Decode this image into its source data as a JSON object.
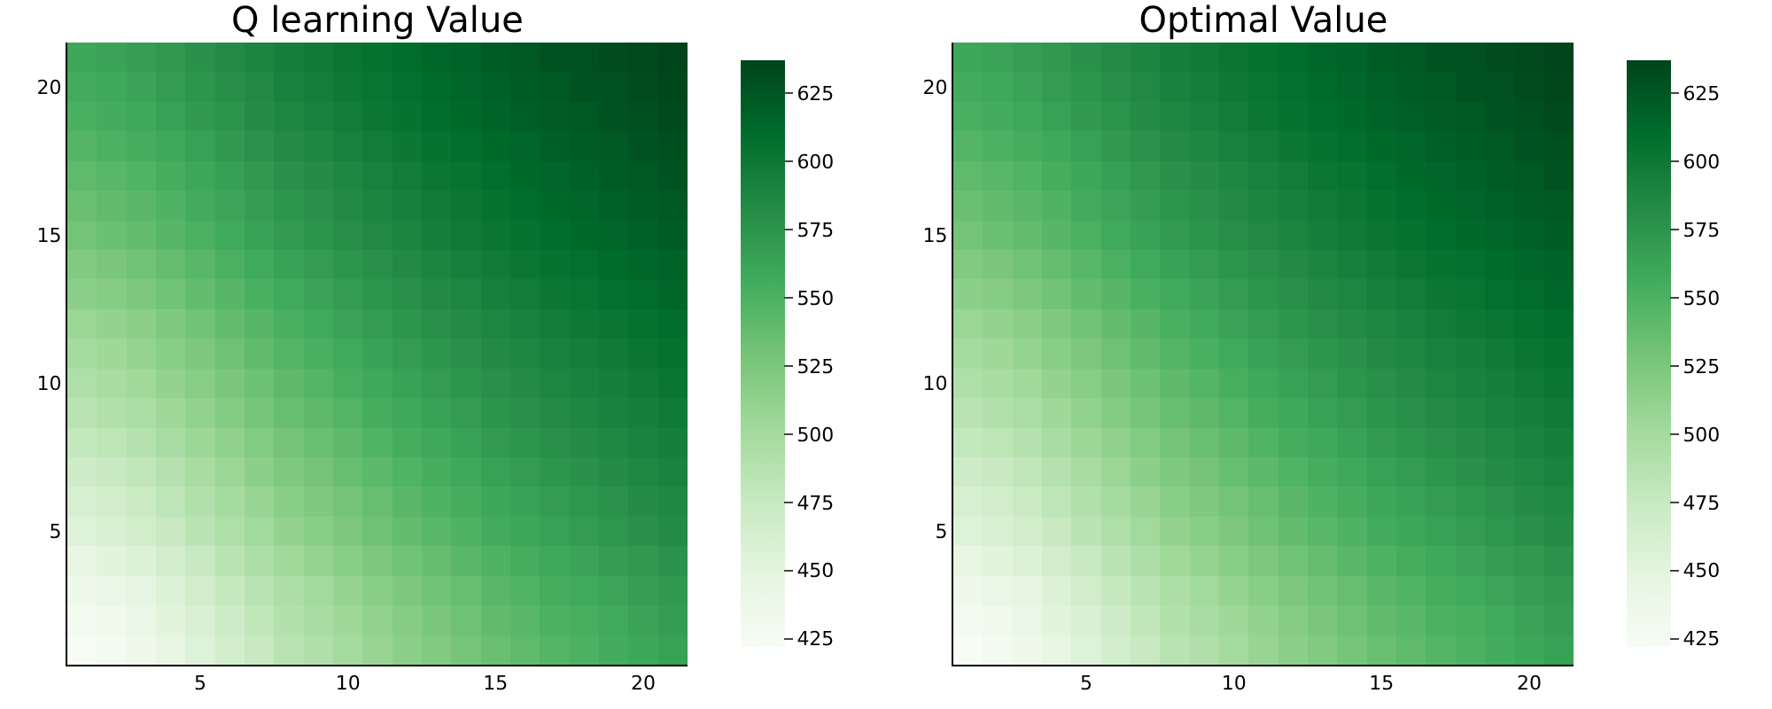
{
  "chart_data": [
    {
      "type": "heatmap",
      "title": "Q learning Value",
      "categories": [
        null,
        null,
        null,
        null,
        "5",
        null,
        null,
        null,
        null,
        "10",
        null,
        null,
        null,
        null,
        "15",
        null,
        null,
        null,
        null,
        "20",
        null
      ],
      "y_categories": [
        null,
        "20",
        null,
        null,
        null,
        null,
        "15",
        null,
        null,
        null,
        null,
        "10",
        null,
        null,
        null,
        null,
        "5",
        null,
        null,
        null,
        null
      ],
      "clim": [
        422,
        637
      ],
      "cticks": [
        425,
        450,
        475,
        500,
        525,
        550,
        575,
        600,
        625
      ],
      "cells": [
        [
          560,
          563,
          567,
          572,
          578,
          583,
          589,
          594,
          598,
          602,
          606,
          610,
          614,
          617,
          621,
          624,
          627,
          629,
          632,
          634,
          637
        ],
        [
          556,
          559,
          563,
          569,
          574,
          580,
          585,
          591,
          595,
          599,
          603,
          607,
          611,
          615,
          618,
          621,
          624,
          627,
          629,
          632,
          635
        ],
        [
          552,
          555,
          559,
          565,
          571,
          576,
          582,
          588,
          592,
          596,
          601,
          605,
          609,
          612,
          616,
          619,
          622,
          624,
          627,
          630,
          633
        ],
        [
          546,
          550,
          554,
          559,
          565,
          571,
          577,
          583,
          587,
          592,
          596,
          600,
          605,
          608,
          612,
          615,
          619,
          621,
          624,
          627,
          630
        ],
        [
          540,
          544,
          548,
          554,
          560,
          566,
          572,
          578,
          582,
          587,
          592,
          596,
          601,
          604,
          608,
          612,
          615,
          618,
          621,
          624,
          627
        ],
        [
          535,
          539,
          543,
          549,
          556,
          562,
          568,
          574,
          579,
          584,
          589,
          593,
          597,
          601,
          605,
          609,
          612,
          615,
          618,
          621,
          624
        ],
        [
          530,
          534,
          538,
          545,
          551,
          557,
          564,
          570,
          575,
          580,
          585,
          589,
          594,
          598,
          602,
          605,
          609,
          612,
          615,
          618,
          621
        ],
        [
          522,
          526,
          531,
          537,
          544,
          551,
          557,
          564,
          569,
          574,
          579,
          584,
          589,
          593,
          597,
          601,
          605,
          607,
          611,
          614,
          617
        ],
        [
          515,
          519,
          524,
          531,
          538,
          545,
          552,
          558,
          563,
          569,
          574,
          579,
          584,
          588,
          593,
          596,
          600,
          603,
          607,
          610,
          614
        ],
        [
          507,
          511,
          516,
          523,
          531,
          538,
          545,
          552,
          557,
          563,
          569,
          574,
          579,
          583,
          588,
          591,
          596,
          599,
          602,
          606,
          609
        ],
        [
          500,
          504,
          510,
          517,
          524,
          532,
          539,
          547,
          552,
          558,
          564,
          569,
          574,
          578,
          584,
          587,
          592,
          595,
          598,
          602,
          606
        ],
        [
          493,
          498,
          503,
          511,
          518,
          526,
          533,
          541,
          546,
          553,
          559,
          564,
          569,
          574,
          579,
          583,
          588,
          591,
          594,
          598,
          602
        ],
        [
          486,
          491,
          496,
          504,
          512,
          520,
          528,
          536,
          541,
          547,
          554,
          559,
          565,
          569,
          575,
          579,
          583,
          587,
          591,
          594,
          598
        ],
        [
          478,
          483,
          489,
          497,
          505,
          513,
          521,
          529,
          535,
          541,
          548,
          554,
          559,
          564,
          570,
          574,
          579,
          582,
          586,
          590,
          594
        ],
        [
          470,
          475,
          481,
          489,
          498,
          506,
          515,
          523,
          529,
          536,
          542,
          548,
          554,
          559,
          565,
          569,
          574,
          578,
          582,
          586,
          590
        ],
        [
          462,
          467,
          473,
          482,
          491,
          499,
          508,
          517,
          523,
          530,
          536,
          543,
          549,
          554,
          560,
          564,
          569,
          573,
          577,
          582,
          586
        ],
        [
          455,
          460,
          467,
          475,
          484,
          493,
          502,
          511,
          517,
          524,
          532,
          538,
          544,
          549,
          556,
          560,
          565,
          569,
          573,
          578,
          582
        ],
        [
          445,
          451,
          457,
          466,
          475,
          485,
          494,
          503,
          510,
          517,
          524,
          531,
          537,
          543,
          549,
          554,
          559,
          563,
          568,
          572,
          577
        ],
        [
          435,
          441,
          447,
          457,
          467,
          476,
          486,
          495,
          502,
          510,
          517,
          524,
          531,
          536,
          543,
          548,
          554,
          557,
          562,
          567,
          572
        ],
        [
          428,
          434,
          441,
          451,
          460,
          470,
          480,
          490,
          497,
          504,
          512,
          519,
          526,
          532,
          539,
          544,
          550,
          553,
          558,
          563,
          568
        ],
        [
          422,
          428,
          435,
          445,
          455,
          465,
          475,
          485,
          492,
          500,
          508,
          515,
          522,
          528,
          535,
          540,
          546,
          550,
          555,
          560,
          565
        ]
      ]
    },
    {
      "type": "heatmap",
      "title": "Optimal Value",
      "categories": [
        null,
        null,
        null,
        null,
        "5",
        null,
        null,
        null,
        null,
        "10",
        null,
        null,
        null,
        null,
        "15",
        null,
        null,
        null,
        null,
        "20",
        null
      ],
      "y_categories": [
        null,
        "20",
        null,
        null,
        null,
        null,
        "15",
        null,
        null,
        null,
        null,
        "10",
        null,
        null,
        null,
        null,
        "5",
        null,
        null,
        null,
        null
      ],
      "clim": [
        422,
        637
      ],
      "cticks": [
        425,
        450,
        475,
        500,
        525,
        550,
        575,
        600,
        625
      ],
      "cells": [
        [
          560,
          563,
          567,
          572,
          578,
          583,
          589,
          594,
          598,
          602,
          606,
          610,
          614,
          617,
          621,
          624,
          627,
          629,
          632,
          634,
          637
        ],
        [
          556,
          559,
          563,
          569,
          574,
          580,
          585,
          591,
          595,
          599,
          603,
          607,
          611,
          615,
          618,
          621,
          624,
          627,
          629,
          632,
          635
        ],
        [
          552,
          555,
          559,
          565,
          571,
          576,
          582,
          588,
          592,
          596,
          601,
          605,
          609,
          612,
          616,
          619,
          622,
          624,
          627,
          630,
          633
        ],
        [
          546,
          550,
          554,
          559,
          565,
          571,
          577,
          583,
          587,
          592,
          596,
          600,
          605,
          608,
          612,
          615,
          619,
          621,
          624,
          627,
          630
        ],
        [
          540,
          544,
          548,
          554,
          560,
          566,
          572,
          578,
          582,
          587,
          592,
          596,
          601,
          604,
          608,
          612,
          615,
          618,
          621,
          624,
          627
        ],
        [
          535,
          539,
          543,
          549,
          556,
          562,
          568,
          574,
          579,
          584,
          589,
          593,
          597,
          601,
          605,
          609,
          612,
          615,
          618,
          621,
          624
        ],
        [
          530,
          534,
          538,
          545,
          551,
          557,
          564,
          570,
          575,
          580,
          585,
          589,
          594,
          598,
          602,
          605,
          609,
          612,
          615,
          618,
          621
        ],
        [
          522,
          526,
          531,
          537,
          544,
          551,
          557,
          564,
          569,
          574,
          579,
          584,
          589,
          593,
          597,
          601,
          605,
          607,
          611,
          614,
          617
        ],
        [
          515,
          519,
          524,
          531,
          538,
          545,
          552,
          558,
          563,
          569,
          574,
          579,
          584,
          588,
          593,
          596,
          600,
          603,
          607,
          610,
          614
        ],
        [
          507,
          511,
          516,
          523,
          531,
          538,
          545,
          552,
          557,
          563,
          569,
          574,
          579,
          583,
          588,
          591,
          596,
          599,
          602,
          606,
          609
        ],
        [
          500,
          504,
          510,
          517,
          524,
          532,
          539,
          547,
          552,
          558,
          564,
          569,
          574,
          578,
          584,
          587,
          592,
          595,
          598,
          602,
          606
        ],
        [
          493,
          498,
          503,
          511,
          518,
          526,
          533,
          541,
          546,
          553,
          559,
          564,
          569,
          574,
          579,
          583,
          588,
          591,
          594,
          598,
          602
        ],
        [
          486,
          491,
          496,
          504,
          512,
          520,
          528,
          536,
          541,
          547,
          554,
          559,
          565,
          569,
          575,
          579,
          583,
          587,
          591,
          594,
          598
        ],
        [
          478,
          483,
          489,
          497,
          505,
          513,
          521,
          529,
          535,
          541,
          548,
          554,
          559,
          564,
          570,
          574,
          579,
          582,
          586,
          590,
          594
        ],
        [
          470,
          475,
          481,
          489,
          498,
          506,
          515,
          523,
          529,
          536,
          542,
          548,
          554,
          559,
          565,
          569,
          574,
          578,
          582,
          586,
          590
        ],
        [
          462,
          467,
          473,
          482,
          491,
          499,
          508,
          517,
          523,
          530,
          536,
          543,
          549,
          554,
          560,
          564,
          569,
          573,
          577,
          582,
          586
        ],
        [
          455,
          460,
          467,
          475,
          484,
          493,
          502,
          511,
          517,
          524,
          532,
          538,
          544,
          549,
          556,
          560,
          565,
          569,
          573,
          578,
          582
        ],
        [
          445,
          451,
          457,
          466,
          475,
          485,
          494,
          503,
          510,
          517,
          524,
          531,
          537,
          543,
          549,
          554,
          559,
          563,
          568,
          572,
          577
        ],
        [
          435,
          441,
          447,
          457,
          467,
          476,
          486,
          495,
          502,
          510,
          517,
          524,
          531,
          536,
          543,
          548,
          554,
          557,
          562,
          567,
          572
        ],
        [
          428,
          434,
          441,
          451,
          460,
          470,
          480,
          490,
          497,
          504,
          512,
          519,
          526,
          532,
          539,
          544,
          550,
          553,
          558,
          563,
          568
        ],
        [
          422,
          428,
          435,
          445,
          455,
          465,
          475,
          485,
          492,
          500,
          508,
          515,
          522,
          528,
          535,
          540,
          546,
          550,
          555,
          560,
          565
        ]
      ]
    }
  ]
}
